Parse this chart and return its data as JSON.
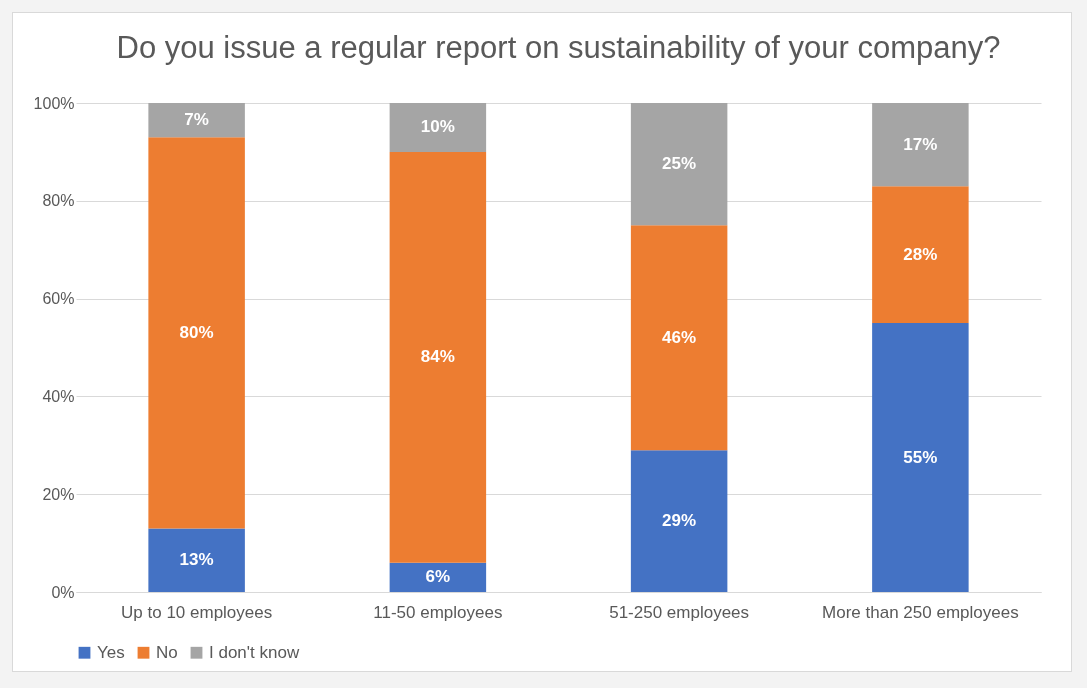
{
  "chart_data": {
    "type": "bar",
    "title": "Do you issue a regular report on sustainability of your company?",
    "categories": [
      "Up to 10 employees",
      "11-50 employees",
      "51-250 employees",
      "More than 250 employees"
    ],
    "stacked": true,
    "ylim": [
      0,
      100
    ],
    "yticks": [
      {
        "value": 0,
        "label": "0%"
      },
      {
        "value": 20,
        "label": "20%"
      },
      {
        "value": 40,
        "label": "40%"
      },
      {
        "value": 60,
        "label": "60%"
      },
      {
        "value": 80,
        "label": "80%"
      },
      {
        "value": 100,
        "label": "100%"
      }
    ],
    "grid": "y",
    "legend": "bottom",
    "series": [
      {
        "name": "Yes",
        "color": "#4472c4",
        "values": [
          13,
          6,
          29,
          55
        ],
        "value_labels": [
          "13%",
          "6%",
          "29%",
          "55%"
        ]
      },
      {
        "name": "No",
        "color": "#ed7d31",
        "values": [
          80,
          84,
          46,
          28
        ],
        "value_labels": [
          "80%",
          "84%",
          "46%",
          "28%"
        ]
      },
      {
        "name": "I don't know",
        "color": "#a5a5a5",
        "values": [
          7,
          10,
          25,
          17
        ],
        "value_labels": [
          "7%",
          "10%",
          "25%",
          "17%"
        ]
      }
    ]
  }
}
